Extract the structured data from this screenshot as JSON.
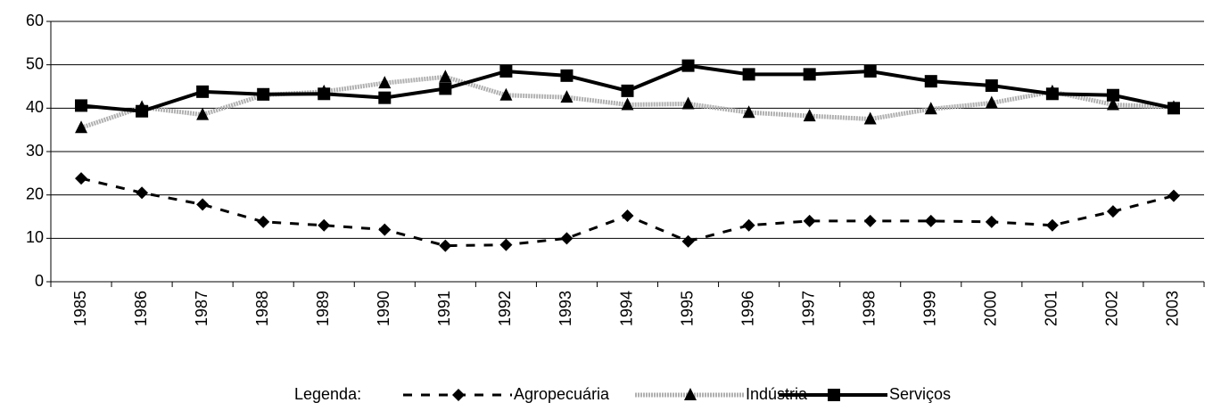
{
  "chart_data": {
    "type": "line",
    "categories": [
      "1985",
      "1986",
      "1987",
      "1988",
      "1989",
      "1990",
      "1991",
      "1992",
      "1993",
      "1994",
      "1995",
      "1996",
      "1997",
      "1998",
      "1999",
      "2000",
      "2001",
      "2002",
      "2003"
    ],
    "series": [
      {
        "name": "Agropecuária",
        "color": "#000000",
        "dash": "10,10",
        "width": 3,
        "marker": "diamond",
        "values": [
          23.8,
          20.5,
          17.8,
          13.8,
          13,
          12,
          8.3,
          8.5,
          10,
          15.2,
          9.3,
          13,
          14,
          14,
          14,
          13.8,
          13,
          16.2,
          19.8
        ]
      },
      {
        "name": "Indústria",
        "color": "#b0b0b0",
        "dash": "2,1",
        "width": 5,
        "marker": "triangle",
        "values": [
          35.5,
          40.2,
          38.5,
          43,
          43.8,
          45.8,
          47.2,
          43,
          42.5,
          40.8,
          41,
          39,
          38.2,
          37.5,
          39.8,
          41.2,
          43.8,
          40.8,
          40.2
        ]
      },
      {
        "name": "Serviços",
        "color": "#000000",
        "dash": "none",
        "width": 4,
        "marker": "square",
        "values": [
          40.6,
          39.3,
          43.8,
          43.2,
          43.3,
          42.4,
          44.5,
          48.5,
          47.5,
          44,
          49.8,
          47.8,
          47.8,
          48.5,
          46.2,
          45.2,
          43.3,
          43,
          40
        ]
      }
    ],
    "legend_title": "Legenda:",
    "ylim": [
      0,
      60
    ],
    "yticks": [
      0,
      10,
      20,
      30,
      40,
      50,
      60
    ],
    "grid": true
  }
}
